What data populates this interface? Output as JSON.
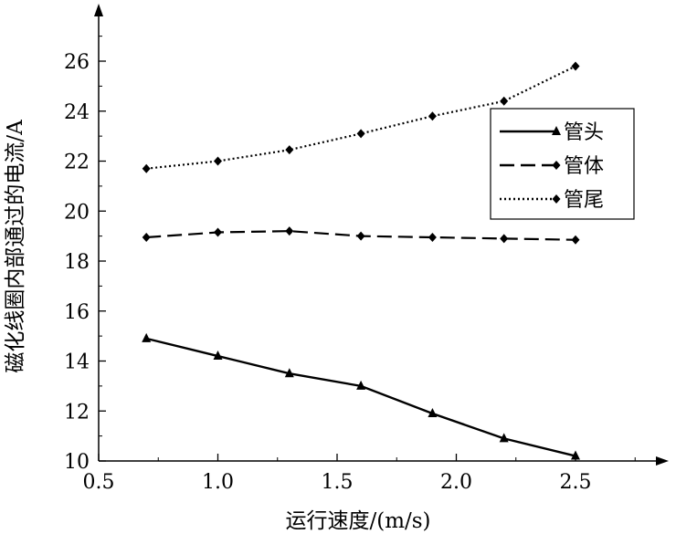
{
  "chart_data": {
    "type": "line",
    "xlabel": "运行速度/(m/s)",
    "ylabel": "磁化线圈内部通过的电流/A",
    "xlim": [
      0.5,
      2.8
    ],
    "ylim": [
      10,
      27.5
    ],
    "x_ticks": [
      0.5,
      1.0,
      1.5,
      2.0,
      2.5
    ],
    "x_tick_labels": [
      "0.5",
      "1.0",
      "1.5",
      "2.0",
      "2.5"
    ],
    "y_ticks": [
      10,
      12,
      14,
      16,
      18,
      20,
      22,
      24,
      26
    ],
    "y_tick_labels": [
      "10",
      "12",
      "14",
      "16",
      "18",
      "20",
      "22",
      "24",
      "26"
    ],
    "grid": false,
    "legend_position": "top-right",
    "x": [
      0.7,
      1.0,
      1.3,
      1.6,
      1.9,
      2.2,
      2.5
    ],
    "series": [
      {
        "name": "管头",
        "values": [
          14.9,
          14.2,
          13.5,
          13.0,
          11.9,
          10.9,
          10.2
        ],
        "line_style": "solid",
        "marker": "triangle"
      },
      {
        "name": "管体",
        "values": [
          18.95,
          19.15,
          19.2,
          19.0,
          18.95,
          18.9,
          18.85
        ],
        "line_style": "dashed",
        "marker": "diamond"
      },
      {
        "name": "管尾",
        "values": [
          21.7,
          22.0,
          22.45,
          23.1,
          23.8,
          24.4,
          25.8
        ],
        "line_style": "dotted",
        "marker": "diamond"
      }
    ]
  }
}
